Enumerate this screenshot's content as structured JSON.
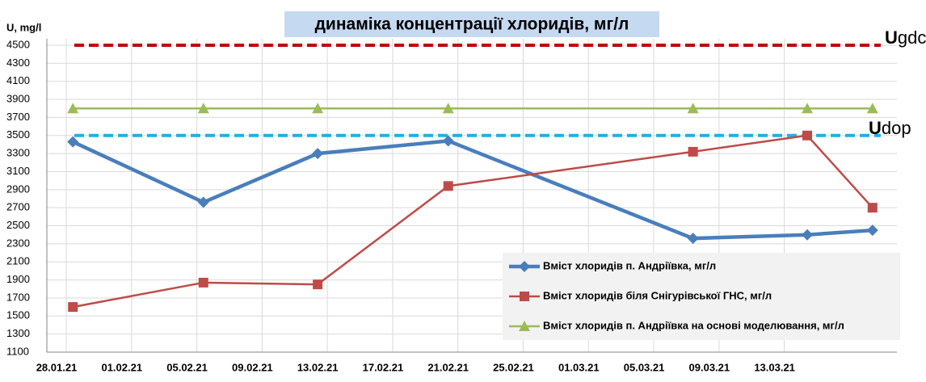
{
  "chart_data": {
    "type": "line",
    "title": "динаміка концентрації хлоридів, мг/л",
    "y_label": "U, mg/l",
    "x": [
      "29.01.21",
      "06.02.21",
      "13.02.21",
      "21.02.21",
      "08.03.21",
      "15.03.21",
      "19.03.21"
    ],
    "xlim": [
      "28.01.21",
      "20.03.21"
    ],
    "xticks": [
      "28.01.21",
      "01.02.21",
      "05.02.21",
      "09.02.21",
      "13.02.21",
      "17.02.21",
      "21.02.21",
      "25.02.21",
      "01.03.21",
      "05.03.21",
      "09.03.21",
      "13.03.21"
    ],
    "ylim": [
      1100,
      4500
    ],
    "yticks": [
      1100,
      1300,
      1500,
      1700,
      1900,
      2100,
      2300,
      2500,
      2700,
      2900,
      3100,
      3300,
      3500,
      3700,
      3900,
      4100,
      4300,
      4500
    ],
    "grid": true,
    "legend": "lower right",
    "series": [
      {
        "name": "Вміст хлоридів п. Андріївка, мг/л",
        "color": "#4a7ebb",
        "marker": "diamond",
        "values": [
          3430,
          2760,
          3300,
          3440,
          2360,
          2400,
          2450
        ]
      },
      {
        "name": "Вміст хлоридів біля Снігурівської ГНС, мг/л",
        "color": "#be4b48",
        "marker": "square",
        "values": [
          1600,
          1870,
          1850,
          2940,
          3320,
          3500,
          2700
        ]
      },
      {
        "name": "Вміст хлоридів п. Андріївка на основі моделювання, мг/л",
        "color": "#9bbb59",
        "marker": "triangle",
        "values": [
          3800,
          3800,
          3800,
          3800,
          3800,
          3800,
          3800
        ]
      }
    ],
    "reference_lines": [
      {
        "label": "Ugdc",
        "value": 4500,
        "color": "#c00000"
      },
      {
        "label": "Udop",
        "value": 3500,
        "color": "#1fb0e8"
      }
    ]
  }
}
